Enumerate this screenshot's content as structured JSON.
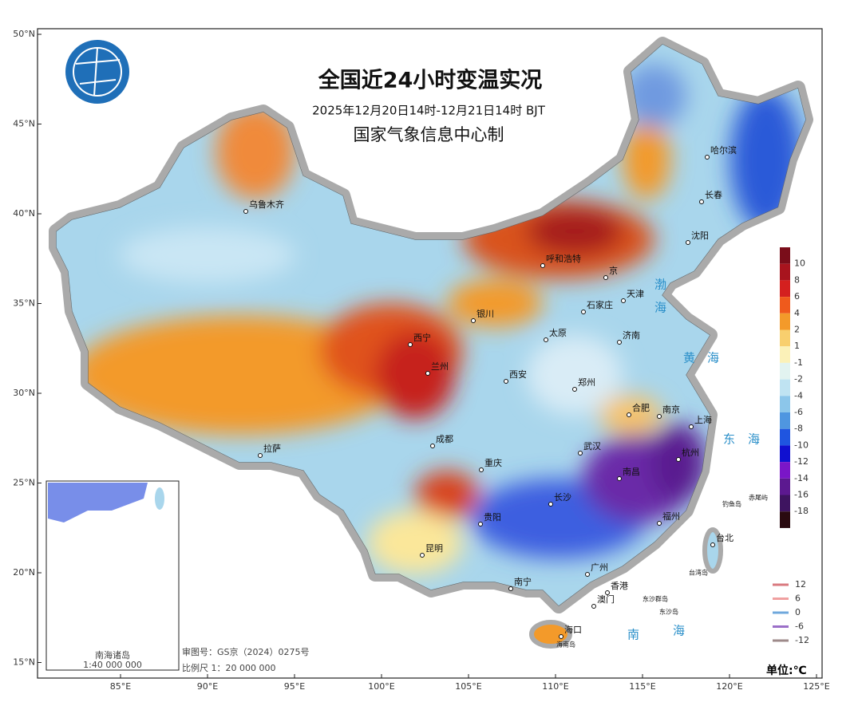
{
  "header": {
    "title": "全国近24小时变温实况",
    "period": "2025年12月20日14时-12月21日14时 BJT",
    "issuer": "国家气象信息中心制"
  },
  "map": {
    "lat_ticks": [
      {
        "value": 50,
        "label": "50°N"
      },
      {
        "value": 45,
        "label": "45°N"
      },
      {
        "value": 40,
        "label": "40°N"
      },
      {
        "value": 35,
        "label": "35°N"
      },
      {
        "value": 30,
        "label": "30°N"
      },
      {
        "value": 25,
        "label": "25°N"
      },
      {
        "value": 20,
        "label": "20°N"
      },
      {
        "value": 15,
        "label": "15°N"
      }
    ],
    "lon_ticks": [
      {
        "value": 85,
        "label": "85°E"
      },
      {
        "value": 90,
        "label": "90°E"
      },
      {
        "value": 95,
        "label": "95°E"
      },
      {
        "value": 100,
        "label": "100°E"
      },
      {
        "value": 105,
        "label": "105°E"
      },
      {
        "value": 110,
        "label": "110°E"
      },
      {
        "value": 115,
        "label": "115°E"
      },
      {
        "value": 120,
        "label": "120°E"
      },
      {
        "value": 125,
        "label": "125°E"
      }
    ],
    "cities": [
      "乌鲁木齐",
      "呼和浩特",
      "京",
      "天津",
      "石家庄",
      "银川",
      "太原",
      "济南",
      "西宁",
      "兰州",
      "西安",
      "郑州",
      "合肥",
      "南京",
      "上海",
      "拉萨",
      "成都",
      "重庆",
      "武汉",
      "长沙",
      "南昌",
      "杭州",
      "福州",
      "贵阳",
      "昆明",
      "南宁",
      "广州",
      "香港",
      "澳门",
      "海口",
      "台北",
      "哈尔滨",
      "长春",
      "沈阳"
    ],
    "places": [
      "台湾岛",
      "海南岛",
      "钓鱼岛",
      "赤尾屿",
      "东沙群岛",
      "东沙岛"
    ],
    "seas": [
      "渤",
      "海",
      "黄",
      "海",
      "东",
      "海",
      "南",
      "海"
    ]
  },
  "colorbar": {
    "levels": [
      10,
      8,
      6,
      4,
      2,
      1,
      -1,
      -2,
      -4,
      -6,
      -8,
      -10,
      -12,
      -14,
      -16,
      -18
    ],
    "colors": [
      "#7a0d1a",
      "#a8141e",
      "#d4201f",
      "#ef5a1c",
      "#f39a2a",
      "#f8cf6e",
      "#fbf1b8",
      "#e2f3f0",
      "#bfe3f2",
      "#8cc6ea",
      "#4f96e0",
      "#1f55e0",
      "#1010d0",
      "#7a16c8",
      "#5c1990",
      "#3e1460",
      "#2a0a10"
    ]
  },
  "line_legend": {
    "values": [
      12,
      6,
      0,
      -6,
      -12
    ],
    "colors": [
      "#d9797f",
      "#f0a0a0",
      "#6fa8dc",
      "#9b6fc8",
      "#9e8a8a"
    ]
  },
  "footer": {
    "review_number": "审图号：GS京（2024）0275号",
    "scale": "比例尺 1：20 000 000",
    "unit": "单位:℃"
  },
  "inset": {
    "title": "南海诸岛",
    "scale": "1:40 000 000"
  }
}
